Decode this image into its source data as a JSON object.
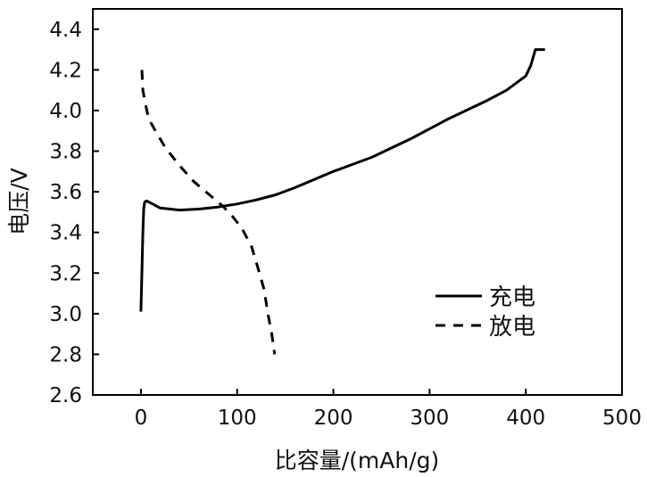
{
  "chart_data": {
    "type": "line",
    "xlabel": "比容量/(mAh/g)",
    "ylabel": "电压/V",
    "xlim": [
      -50,
      500
    ],
    "ylim": [
      2.6,
      4.5
    ],
    "xticks": [
      0,
      100,
      200,
      300,
      400,
      500
    ],
    "yticks": [
      2.6,
      2.8,
      3.0,
      3.2,
      3.4,
      3.6,
      3.8,
      4.0,
      4.2,
      4.4
    ],
    "grid": false,
    "legend_position": "lower-right",
    "series": [
      {
        "name": "充电",
        "style": "solid",
        "color": "#000000",
        "x": [
          0,
          1,
          2,
          3,
          4,
          6,
          10,
          20,
          40,
          60,
          80,
          100,
          120,
          140,
          160,
          180,
          200,
          240,
          280,
          320,
          360,
          380,
          400,
          405,
          410,
          420
        ],
        "y": [
          3.01,
          3.2,
          3.4,
          3.52,
          3.55,
          3.555,
          3.545,
          3.52,
          3.51,
          3.515,
          3.525,
          3.54,
          3.56,
          3.585,
          3.62,
          3.66,
          3.7,
          3.77,
          3.86,
          3.96,
          4.05,
          4.1,
          4.17,
          4.22,
          4.3,
          4.3
        ]
      },
      {
        "name": "放电",
        "style": "dashed",
        "color": "#000000",
        "x": [
          1,
          2,
          4,
          8,
          15,
          25,
          40,
          55,
          70,
          85,
          95,
          105,
          115,
          122,
          128,
          132,
          136,
          139
        ],
        "y": [
          4.2,
          4.1,
          4.05,
          3.96,
          3.9,
          3.82,
          3.73,
          3.65,
          3.59,
          3.53,
          3.48,
          3.42,
          3.33,
          3.22,
          3.12,
          3.0,
          2.9,
          2.8
        ]
      }
    ]
  }
}
